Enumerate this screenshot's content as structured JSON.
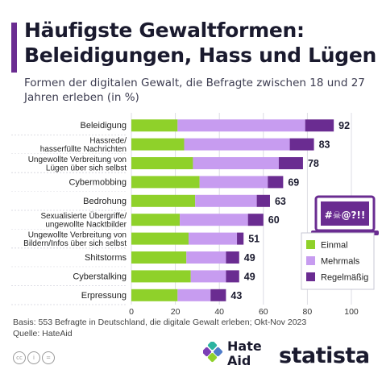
{
  "title": "Häufigste Gewaltformen: Beleidigungen, Hass und Lügen",
  "subtitle": "Formen der digitalen Gewalt, die Befragte zwischen 18 und 27 Jahren erleben (in %)",
  "icon_text": "#☠@?!!",
  "basis": "Basis: 553 Befragte in Deutschland, die digitale Gewalt erleben; Okt-Nov 2023",
  "source": "Quelle: HateAid",
  "logos": {
    "hateaid": [
      "Hate",
      "Aid"
    ],
    "statista": "statista"
  },
  "colors": {
    "einmal": "#8fd12a",
    "mehrmals": "#c79cf0",
    "regelmaessig": "#6a2c91",
    "accent": "#6a2c91"
  },
  "chart_data": {
    "type": "bar",
    "orientation": "horizontal",
    "stacked": true,
    "categories": [
      [
        "Beleidigung"
      ],
      [
        "Hassrede/",
        "hasserfüllte Nachrichten"
      ],
      [
        "Ungewollte Verbreitung von",
        "Lügen über sich selbst"
      ],
      [
        "Cybermobbing"
      ],
      [
        "Bedrohung"
      ],
      [
        "Sexualisierte Übergriffe/",
        "ungewollte Nacktbilder"
      ],
      [
        "Ungewollte Verbreitung von",
        "Bildern/Infos über sich selbst"
      ],
      [
        "Shitstorms"
      ],
      [
        "Cyberstalking"
      ],
      [
        "Erpressung"
      ]
    ],
    "series": [
      {
        "name": "Einmal",
        "values": [
          21,
          24,
          28,
          31,
          29,
          22,
          26,
          25,
          27,
          21
        ]
      },
      {
        "name": "Mehrmals",
        "values": [
          58,
          48,
          39,
          31,
          28,
          31,
          22,
          18,
          16,
          15
        ]
      },
      {
        "name": "Regelmäßig",
        "values": [
          13,
          11,
          11,
          7,
          6,
          7,
          3,
          6,
          6,
          7
        ]
      }
    ],
    "totals": [
      92,
      83,
      78,
      69,
      63,
      60,
      51,
      49,
      49,
      43
    ],
    "xticks": [
      0,
      20,
      40,
      60,
      80,
      100
    ],
    "xlim": [
      0,
      100
    ],
    "legend_position": "right"
  }
}
